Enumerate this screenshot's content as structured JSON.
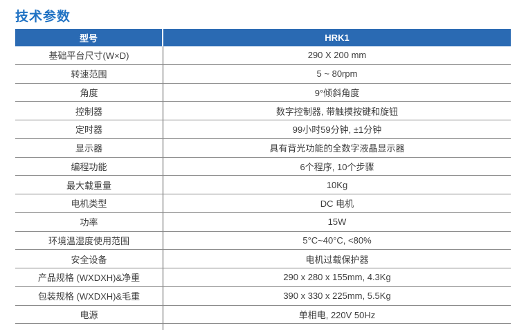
{
  "colors": {
    "accent_blue": "#2A6AB3",
    "title_blue": "#2173C4",
    "row_line": "#8a8a8a",
    "divider": "#4b4b4b",
    "text": "#3d3d3d"
  },
  "page": {
    "title": "技术参数"
  },
  "table": {
    "header": {
      "param_col": "型号",
      "value_col": "HRK1"
    },
    "rows": [
      {
        "label": "基础平台尺寸(W×D)",
        "value": "290 X 200 mm"
      },
      {
        "label": "转速范围",
        "value": "5 ~ 80rpm"
      },
      {
        "label": "角度",
        "value": "9°倾斜角度"
      },
      {
        "label": "控制器",
        "value": "数字控制器, 带触摸按键和旋钮"
      },
      {
        "label": "定时器",
        "value": "99小时59分钟, ±1分钟"
      },
      {
        "label": "显示器",
        "value": "具有背光功能的全数字液晶显示器"
      },
      {
        "label": "编程功能",
        "value": "6个程序, 10个步骤"
      },
      {
        "label": "最大载重量",
        "value": "10Kg"
      },
      {
        "label": "电机类型",
        "value": "DC 电机"
      },
      {
        "label": "功率",
        "value": "15W"
      },
      {
        "label": "环境温湿度使用范围",
        "value": "5°C~40°C, <80%"
      },
      {
        "label": "安全设备",
        "value": "电机过载保护器"
      },
      {
        "label": "产品规格 (WXDXH)&净重",
        "value": "290 x 280 x 155mm, 4.3Kg"
      },
      {
        "label": "包装规格 (WXDXH)&毛重",
        "value": "390 x 330 x 225mm, 5.5Kg"
      },
      {
        "label": "电源",
        "value": "单相电, 220V 50Hz"
      }
    ]
  }
}
